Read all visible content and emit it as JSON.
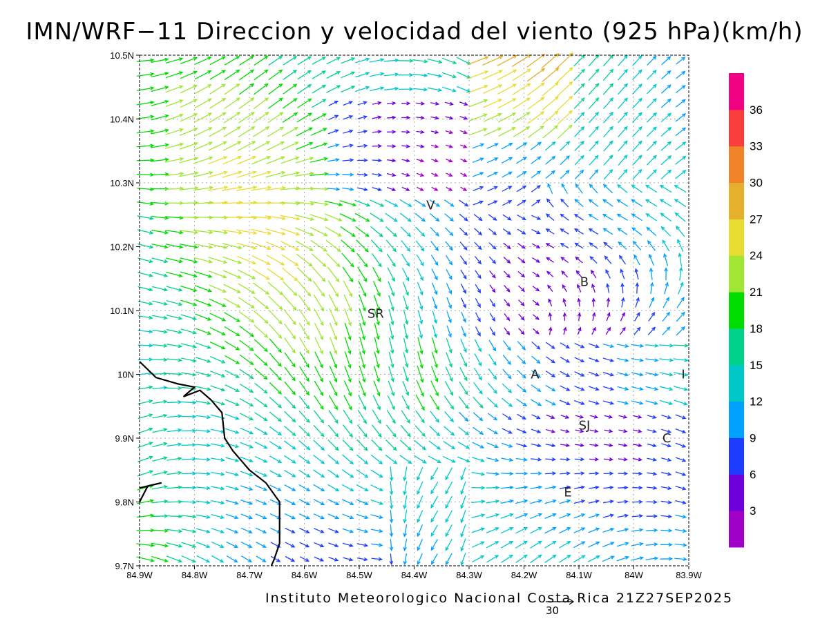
{
  "title": "IMN/WRF−11 Direccion y velocidad del viento (925 hPa)(km/h)",
  "footer": "Instituto Meteorologico Nacional Costa Rica 21Z27SEP2025",
  "reference_vector_label": "30",
  "map": {
    "lon_range": [
      -84.9,
      -83.9
    ],
    "lat_range": [
      9.7,
      10.5
    ],
    "gridlines": true,
    "x_ticks": [
      {
        "value": -84.9,
        "label": "84.9W"
      },
      {
        "value": -84.8,
        "label": "84.8W"
      },
      {
        "value": -84.7,
        "label": "84.7W"
      },
      {
        "value": -84.6,
        "label": "84.6W"
      },
      {
        "value": -84.5,
        "label": "84.5W"
      },
      {
        "value": -84.4,
        "label": "84.4W"
      },
      {
        "value": -84.3,
        "label": "84.3W"
      },
      {
        "value": -84.2,
        "label": "84.2W"
      },
      {
        "value": -84.1,
        "label": "84.1W"
      },
      {
        "value": -84.0,
        "label": "84W"
      },
      {
        "value": -83.9,
        "label": "83.9W"
      }
    ],
    "y_ticks": [
      {
        "value": 10.5,
        "label": "10.5N"
      },
      {
        "value": 10.4,
        "label": "10.4N"
      },
      {
        "value": 10.3,
        "label": "10.3N"
      },
      {
        "value": 10.2,
        "label": "10.2N"
      },
      {
        "value": 10.1,
        "label": "10.1N"
      },
      {
        "value": 10.0,
        "label": "10N"
      },
      {
        "value": 9.9,
        "label": "9.9N"
      },
      {
        "value": 9.8,
        "label": "9.8N"
      },
      {
        "value": 9.7,
        "label": "9.7N"
      }
    ],
    "city_labels": [
      {
        "label": "V",
        "lon": -84.37,
        "lat": 10.265
      },
      {
        "label": "B",
        "lon": -84.09,
        "lat": 10.145
      },
      {
        "label": "SR",
        "lon": -84.47,
        "lat": 10.095
      },
      {
        "label": "A",
        "lon": -84.18,
        "lat": 10.0
      },
      {
        "label": "I",
        "lon": -83.91,
        "lat": 10.0
      },
      {
        "label": "SJ",
        "lon": -84.09,
        "lat": 9.92
      },
      {
        "label": "C",
        "lon": -83.94,
        "lat": 9.9
      },
      {
        "label": "E",
        "lon": -84.12,
        "lat": 9.815
      }
    ],
    "coastline": [
      [
        -84.9,
        10.02
      ],
      [
        -84.87,
        9.995
      ],
      [
        -84.83,
        9.985
      ],
      [
        -84.8,
        9.98
      ],
      [
        -84.82,
        9.965
      ],
      [
        -84.79,
        9.975
      ],
      [
        -84.77,
        9.96
      ],
      [
        -84.75,
        9.94
      ],
      [
        -84.745,
        9.9
      ],
      [
        -84.73,
        9.88
      ],
      [
        -84.7,
        9.85
      ],
      [
        -84.67,
        9.83
      ],
      [
        -84.645,
        9.8
      ],
      [
        -84.645,
        9.77
      ],
      [
        -84.645,
        9.735
      ],
      [
        -84.655,
        9.71
      ],
      [
        -84.66,
        9.7
      ]
    ],
    "coastline_2": [
      [
        -84.9,
        9.8
      ],
      [
        -84.885,
        9.825
      ],
      [
        -84.86,
        9.83
      ],
      [
        -84.9,
        9.822
      ]
    ]
  },
  "colorbar": {
    "colors": [
      "#a000c8",
      "#6e00dc",
      "#1e3cff",
      "#00a0ff",
      "#00c8c8",
      "#00d28c",
      "#00dc00",
      "#a0e632",
      "#e6dc32",
      "#e6af2d",
      "#f08228",
      "#fa3c3c",
      "#f00082"
    ],
    "labels": [
      "3",
      "6",
      "9",
      "12",
      "15",
      "18",
      "21",
      "24",
      "27",
      "30",
      "33",
      "36"
    ]
  }
}
